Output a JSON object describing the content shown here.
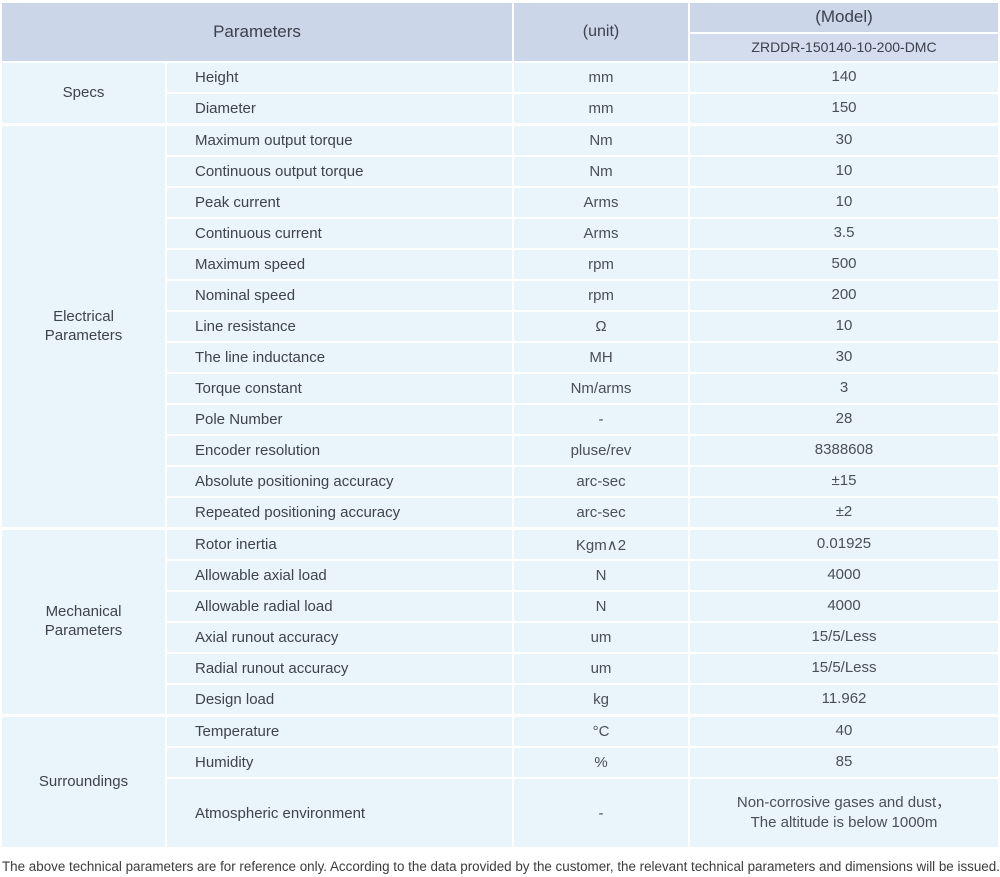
{
  "header": {
    "parameters_label": "Parameters",
    "unit_label": "(unit)",
    "model_label": "(Model)",
    "model_value": "ZRDDR-150140-10-200-DMC"
  },
  "groups": [
    {
      "label": "Specs",
      "rows": [
        {
          "name": "Height",
          "unit": "mm",
          "value": "140"
        },
        {
          "name": "Diameter",
          "unit": "mm",
          "value": "150"
        }
      ]
    },
    {
      "label": "Electrical\nParameters",
      "rows": [
        {
          "name": "Maximum output torque",
          "unit": "Nm",
          "value": "30"
        },
        {
          "name": "Continuous output torque",
          "unit": "Nm",
          "value": "10"
        },
        {
          "name": "Peak current",
          "unit": "Arms",
          "value": "10"
        },
        {
          "name": "Continuous current",
          "unit": "Arms",
          "value": "3.5"
        },
        {
          "name": "Maximum speed",
          "unit": "rpm",
          "value": "500"
        },
        {
          "name": "Nominal speed",
          "unit": "rpm",
          "value": "200"
        },
        {
          "name": "Line resistance",
          "unit": "Ω",
          "value": "10"
        },
        {
          "name": "The line inductance",
          "unit": "MH",
          "value": "30"
        },
        {
          "name": "Torque constant",
          "unit": "Nm/arms",
          "value": "3"
        },
        {
          "name": "Pole Number",
          "unit": "-",
          "value": "28"
        },
        {
          "name": "Encoder resolution",
          "unit": "pluse/rev",
          "value": "8388608"
        },
        {
          "name": "Absolute positioning accuracy",
          "unit": "arc-sec",
          "value": "±15"
        },
        {
          "name": "Repeated positioning accuracy",
          "unit": "arc-sec",
          "value": "±2"
        }
      ]
    },
    {
      "label": "Mechanical\nParameters",
      "rows": [
        {
          "name": "Rotor inertia",
          "unit": "Kgm∧2",
          "value": "0.01925"
        },
        {
          "name": "Allowable axial load",
          "unit": "N",
          "value": "4000"
        },
        {
          "name": "Allowable radial load",
          "unit": "N",
          "value": "4000"
        },
        {
          "name": "Axial runout accuracy",
          "unit": "um",
          "value": "15/5/Less"
        },
        {
          "name": "Radial runout accuracy",
          "unit": "um",
          "value": "15/5/Less"
        },
        {
          "name": "Design load",
          "unit": "kg",
          "value": "11.962"
        }
      ]
    },
    {
      "label": "Surroundings",
      "rows": [
        {
          "name": "Temperature",
          "unit": "°C",
          "value": "40"
        },
        {
          "name": "Humidity",
          "unit": "%",
          "value": "85"
        },
        {
          "name": "Atmospheric environment",
          "unit": "-",
          "value": "Non-corrosive gases and dust，\nThe altitude is below 1000m"
        }
      ]
    }
  ],
  "footer": {
    "note": "The above technical parameters are for reference only. According to the data provided by the customer, the relevant technical parameters and dimensions will be issued."
  },
  "colors": {
    "header_bg": "#cbd6e9",
    "model_cell_bg": "#d3ddee",
    "row_bg": "#e9f4fb",
    "text": "#3f434c"
  }
}
